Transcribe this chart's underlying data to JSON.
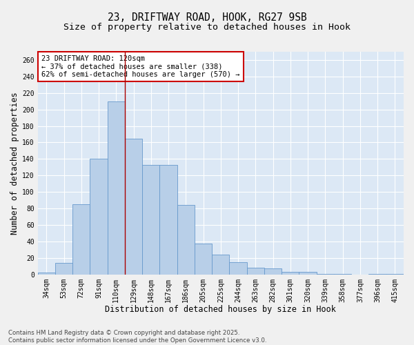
{
  "title_line1": "23, DRIFTWAY ROAD, HOOK, RG27 9SB",
  "title_line2": "Size of property relative to detached houses in Hook",
  "xlabel": "Distribution of detached houses by size in Hook",
  "ylabel": "Number of detached properties",
  "categories": [
    "34sqm",
    "53sqm",
    "72sqm",
    "91sqm",
    "110sqm",
    "129sqm",
    "148sqm",
    "167sqm",
    "186sqm",
    "205sqm",
    "225sqm",
    "244sqm",
    "263sqm",
    "282sqm",
    "301sqm",
    "320sqm",
    "339sqm",
    "358sqm",
    "377sqm",
    "396sqm",
    "415sqm"
  ],
  "values": [
    2,
    14,
    85,
    140,
    210,
    165,
    133,
    133,
    84,
    37,
    24,
    15,
    8,
    7,
    3,
    3,
    1,
    1,
    0,
    1,
    1
  ],
  "bar_color": "#b8cfe8",
  "bar_edge_color": "#6699cc",
  "vline_x": 4.5,
  "vline_color": "#aa0000",
  "annotation_text": "23 DRIFTWAY ROAD: 120sqm\n← 37% of detached houses are smaller (338)\n62% of semi-detached houses are larger (570) →",
  "annotation_box_color": "#ffffff",
  "annotation_box_edge_color": "#cc0000",
  "ylim": [
    0,
    270
  ],
  "yticks": [
    0,
    20,
    40,
    60,
    80,
    100,
    120,
    140,
    160,
    180,
    200,
    220,
    240,
    260
  ],
  "bg_color": "#dce8f5",
  "fig_bg_color": "#f0f0f0",
  "footnote": "Contains HM Land Registry data © Crown copyright and database right 2025.\nContains public sector information licensed under the Open Government Licence v3.0.",
  "title_fontsize": 10.5,
  "subtitle_fontsize": 9.5,
  "axis_label_fontsize": 8.5,
  "tick_fontsize": 7,
  "annotation_fontsize": 7.5
}
